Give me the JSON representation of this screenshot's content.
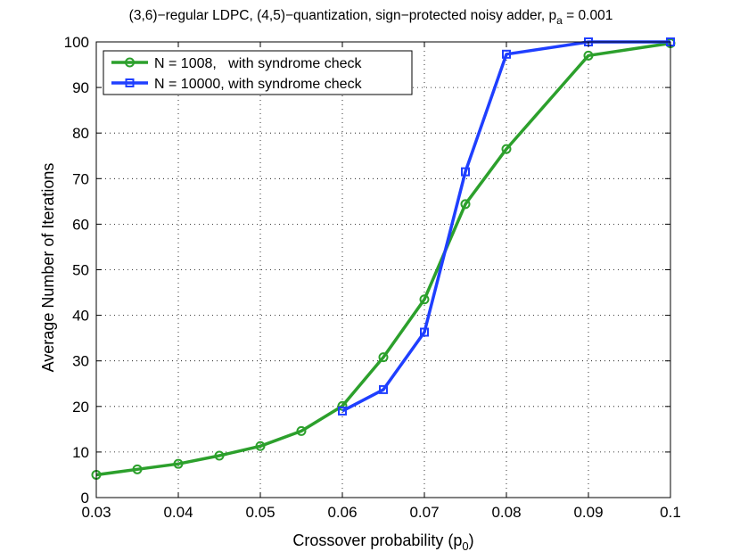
{
  "chart_data": {
    "type": "line",
    "title_main": "(3,6)−regular LDPC, (4,5)−quantization, sign−protected noisy adder, p",
    "title_sub": "a",
    "title_tail": " = 0.001",
    "xlabel_main": "Crossover probability (p",
    "xlabel_sub": "0",
    "xlabel_tail": ")",
    "ylabel": "Average Number of Iterations",
    "xlim": [
      0.03,
      0.1
    ],
    "ylim": [
      0,
      100
    ],
    "xticks": [
      0.03,
      0.04,
      0.05,
      0.06,
      0.07,
      0.08,
      0.09,
      0.1
    ],
    "xtick_labels": [
      "0.03",
      "0.04",
      "0.05",
      "0.06",
      "0.07",
      "0.08",
      "0.09",
      "0.1"
    ],
    "yticks": [
      0,
      10,
      20,
      30,
      40,
      50,
      60,
      70,
      80,
      90,
      100
    ],
    "ytick_labels": [
      "0",
      "10",
      "20",
      "30",
      "40",
      "50",
      "60",
      "70",
      "80",
      "90",
      "100"
    ],
    "grid": true,
    "legend_position": "top-left",
    "series": [
      {
        "name": "N = 1008,   with syndrome check",
        "color": "#2ca02c",
        "marker": "circle",
        "x": [
          0.03,
          0.035,
          0.04,
          0.045,
          0.05,
          0.055,
          0.06,
          0.065,
          0.07,
          0.075,
          0.08,
          0.09,
          0.1
        ],
        "y": [
          5.0,
          6.2,
          7.4,
          9.2,
          11.3,
          14.6,
          20.1,
          30.8,
          43.5,
          64.4,
          76.5,
          97.0,
          99.7
        ]
      },
      {
        "name": "N = 10000, with syndrome check",
        "color": "#1f3fff",
        "marker": "square",
        "x": [
          0.06,
          0.065,
          0.07,
          0.075,
          0.08,
          0.09,
          0.1
        ],
        "y": [
          19.0,
          23.7,
          36.3,
          71.5,
          97.3,
          100.0,
          100.0
        ]
      }
    ]
  }
}
